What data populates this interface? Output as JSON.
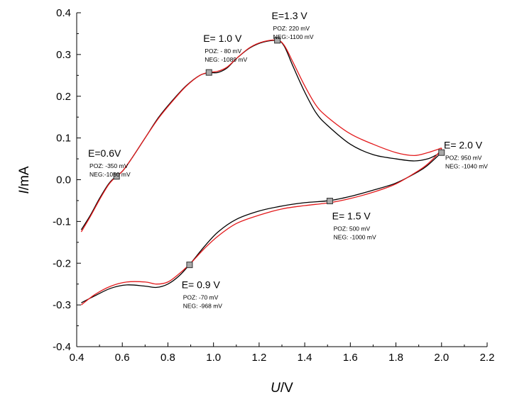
{
  "chart_data": {
    "type": "line",
    "title": "",
    "xlabel": {
      "italic": "U",
      "rest": "/V"
    },
    "ylabel": {
      "italic": "I",
      "rest": "/mA"
    },
    "xlim": [
      0.4,
      2.2
    ],
    "ylim": [
      -0.4,
      0.4
    ],
    "x_ticks": [
      "0.4",
      "0.6",
      "0.8",
      "1.0",
      "1.2",
      "1.4",
      "1.6",
      "1.8",
      "2.0",
      "2.2"
    ],
    "y_ticks": [
      "-0.4",
      "-0.3",
      "-0.2",
      "-0.1",
      "0.0",
      "0.1",
      "0.2",
      "0.3",
      "0.4"
    ],
    "grid": false,
    "legend": "none",
    "series": [
      {
        "color": "#000000",
        "points": [
          [
            0.42,
            -0.12
          ],
          [
            0.46,
            -0.085
          ],
          [
            0.5,
            -0.045
          ],
          [
            0.54,
            -0.01
          ],
          [
            0.57,
            0.007
          ],
          [
            0.6,
            0.02
          ],
          [
            0.64,
            0.05
          ],
          [
            0.7,
            0.1
          ],
          [
            0.76,
            0.15
          ],
          [
            0.82,
            0.19
          ],
          [
            0.88,
            0.225
          ],
          [
            0.94,
            0.25
          ],
          [
            0.98,
            0.256
          ],
          [
            1.02,
            0.257
          ],
          [
            1.06,
            0.268
          ],
          [
            1.1,
            0.29
          ],
          [
            1.16,
            0.316
          ],
          [
            1.22,
            0.33
          ],
          [
            1.28,
            0.333
          ],
          [
            1.31,
            0.32
          ],
          [
            1.35,
            0.27
          ],
          [
            1.4,
            0.21
          ],
          [
            1.45,
            0.16
          ],
          [
            1.5,
            0.13
          ],
          [
            1.6,
            0.085
          ],
          [
            1.7,
            0.06
          ],
          [
            1.8,
            0.05
          ],
          [
            1.88,
            0.045
          ],
          [
            1.94,
            0.05
          ],
          [
            1.98,
            0.06
          ],
          [
            2.0,
            0.065
          ],
          [
            1.98,
            0.055
          ],
          [
            1.94,
            0.035
          ],
          [
            1.9,
            0.02
          ],
          [
            1.8,
            -0.008
          ],
          [
            1.7,
            -0.025
          ],
          [
            1.6,
            -0.04
          ],
          [
            1.51,
            -0.05
          ],
          [
            1.4,
            -0.055
          ],
          [
            1.3,
            -0.063
          ],
          [
            1.2,
            -0.075
          ],
          [
            1.1,
            -0.095
          ],
          [
            1.02,
            -0.125
          ],
          [
            0.96,
            -0.16
          ],
          [
            0.9,
            -0.2
          ],
          [
            0.85,
            -0.23
          ],
          [
            0.8,
            -0.25
          ],
          [
            0.75,
            -0.258
          ],
          [
            0.7,
            -0.255
          ],
          [
            0.62,
            -0.252
          ],
          [
            0.55,
            -0.26
          ],
          [
            0.48,
            -0.278
          ],
          [
            0.42,
            -0.295
          ]
        ]
      },
      {
        "color": "#e31a1c",
        "points": [
          [
            0.42,
            -0.125
          ],
          [
            0.46,
            -0.088
          ],
          [
            0.5,
            -0.048
          ],
          [
            0.54,
            -0.012
          ],
          [
            0.57,
            0.006
          ],
          [
            0.6,
            0.02
          ],
          [
            0.64,
            0.05
          ],
          [
            0.7,
            0.1
          ],
          [
            0.76,
            0.148
          ],
          [
            0.82,
            0.188
          ],
          [
            0.88,
            0.224
          ],
          [
            0.94,
            0.25
          ],
          [
            0.98,
            0.257
          ],
          [
            1.02,
            0.26
          ],
          [
            1.06,
            0.27
          ],
          [
            1.1,
            0.29
          ],
          [
            1.16,
            0.317
          ],
          [
            1.22,
            0.331
          ],
          [
            1.28,
            0.334
          ],
          [
            1.31,
            0.322
          ],
          [
            1.35,
            0.28
          ],
          [
            1.4,
            0.225
          ],
          [
            1.45,
            0.178
          ],
          [
            1.5,
            0.15
          ],
          [
            1.6,
            0.11
          ],
          [
            1.7,
            0.085
          ],
          [
            1.8,
            0.065
          ],
          [
            1.88,
            0.058
          ],
          [
            1.94,
            0.065
          ],
          [
            1.98,
            0.072
          ],
          [
            2.0,
            0.075
          ],
          [
            1.98,
            0.06
          ],
          [
            1.94,
            0.038
          ],
          [
            1.9,
            0.022
          ],
          [
            1.8,
            -0.01
          ],
          [
            1.7,
            -0.03
          ],
          [
            1.6,
            -0.045
          ],
          [
            1.51,
            -0.055
          ],
          [
            1.4,
            -0.062
          ],
          [
            1.3,
            -0.07
          ],
          [
            1.2,
            -0.085
          ],
          [
            1.1,
            -0.105
          ],
          [
            1.02,
            -0.135
          ],
          [
            0.96,
            -0.165
          ],
          [
            0.9,
            -0.2
          ],
          [
            0.85,
            -0.225
          ],
          [
            0.8,
            -0.245
          ],
          [
            0.75,
            -0.25
          ],
          [
            0.7,
            -0.245
          ],
          [
            0.62,
            -0.245
          ],
          [
            0.55,
            -0.255
          ],
          [
            0.48,
            -0.275
          ],
          [
            0.42,
            -0.3
          ]
        ]
      }
    ],
    "markers": [
      {
        "x": 0.575,
        "y": 0.008
      },
      {
        "x": 0.98,
        "y": 0.257
      },
      {
        "x": 1.28,
        "y": 0.334
      },
      {
        "x": 2.0,
        "y": 0.065
      },
      {
        "x": 1.51,
        "y": -0.051
      },
      {
        "x": 0.895,
        "y": -0.204
      }
    ],
    "annotations": [
      {
        "main": "E=0.6V",
        "poz": "POZ: -350 mV",
        "neg": "NEG:-1050 mV",
        "ax": 0.45,
        "ay": 0.055
      },
      {
        "main": "E= 1.0 V",
        "poz": "POZ: - 80 mV",
        "neg": "NEG: -1089 mV",
        "ax": 0.955,
        "ay": 0.33
      },
      {
        "main": "E=1.3 V",
        "poz": "POZ: 220 mV",
        "neg": "NEG:-1100 mV",
        "ax": 1.255,
        "ay": 0.385
      },
      {
        "main": "E= 2.0 V",
        "poz": "POZ: 950 mV",
        "neg": "NEG: -1040 mV",
        "ax": 2.01,
        "ay": 0.075
      },
      {
        "main": "E= 1.5 V",
        "poz": "POZ: 500 mV",
        "neg": "NEG: -1000 mV",
        "ax": 1.52,
        "ay": -0.095
      },
      {
        "main": "E= 0.9 V",
        "poz": "POZ: -70 mV",
        "neg": "NEG: -968 mV",
        "ax": 0.86,
        "ay": -0.26
      }
    ]
  }
}
